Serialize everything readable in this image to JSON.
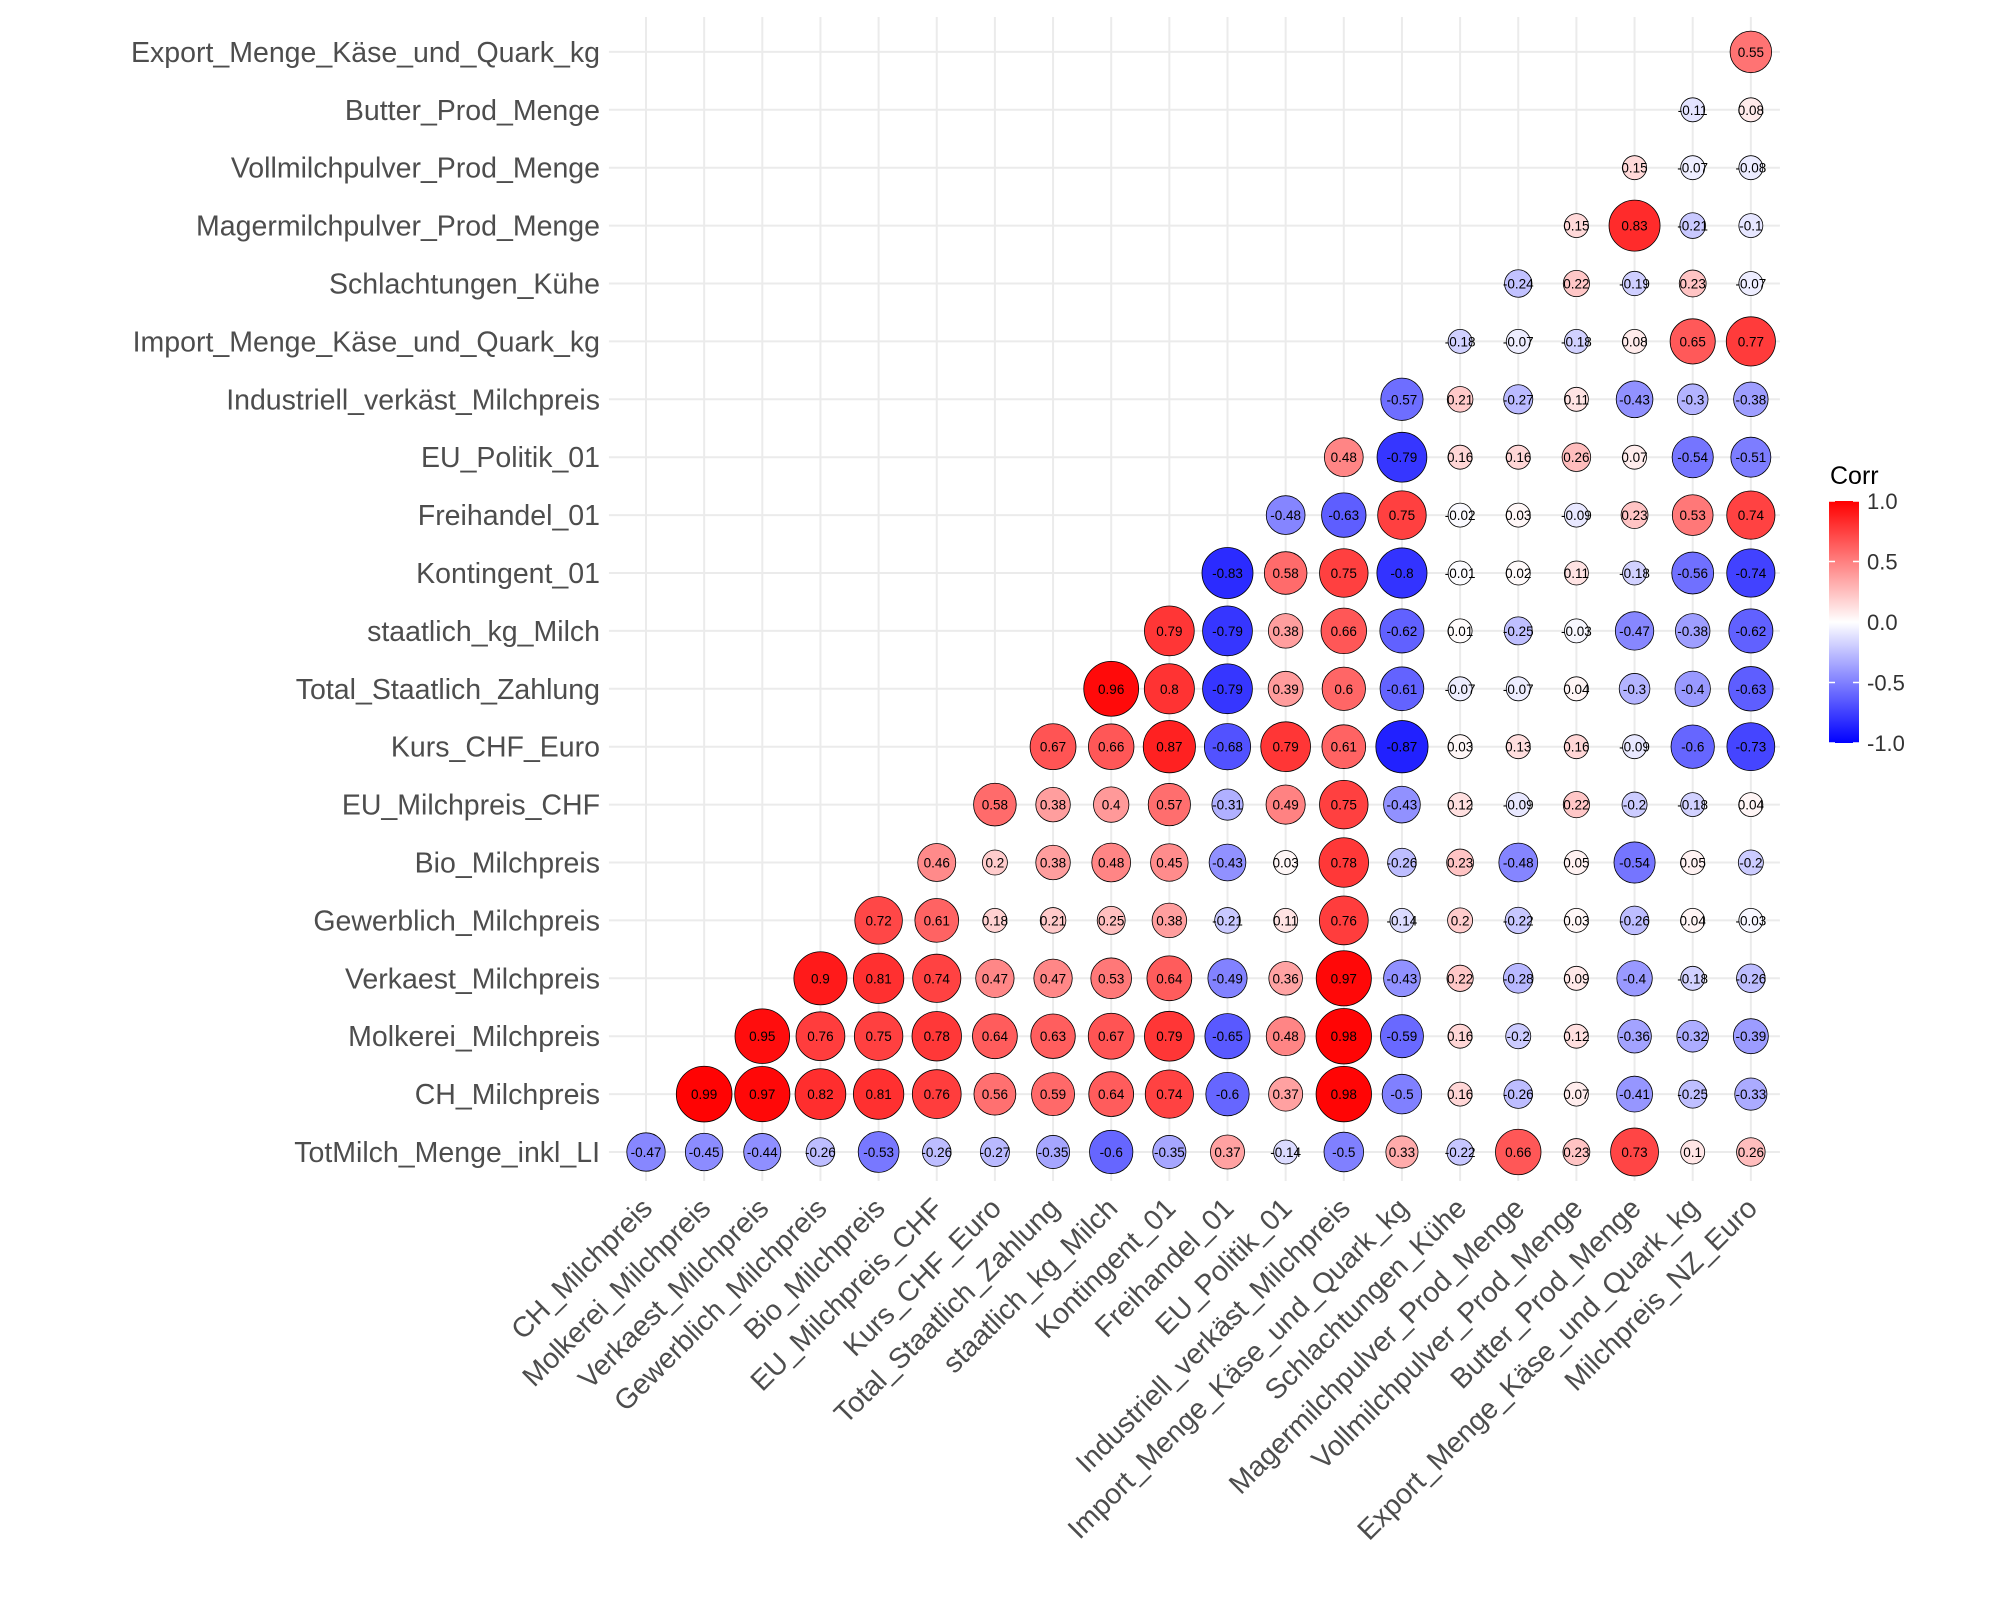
{
  "chart_data": {
    "type": "correlogram",
    "title": "",
    "y_variables": [
      "TotMilch_Menge_inkl_LI",
      "CH_Milchpreis",
      "Molkerei_Milchpreis",
      "Verkaest_Milchpreis",
      "Gewerblich_Milchpreis",
      "Bio_Milchpreis",
      "EU_Milchpreis_CHF",
      "Kurs_CHF_Euro",
      "Total_Staatlich_Zahlung",
      "staatlich_kg_Milch",
      "Kontingent_01",
      "Freihandel_01",
      "EU_Politik_01",
      "Industriell_verkäst_Milchpreis",
      "Import_Menge_Käse_und_Quark_kg",
      "Schlachtungen_Kühe",
      "Magermilchpulver_Prod_Menge",
      "Vollmilchpulver_Prod_Menge",
      "Butter_Prod_Menge",
      "Export_Menge_Käse_und_Quark_kg"
    ],
    "x_variables": [
      "CH_Milchpreis",
      "Molkerei_Milchpreis",
      "Verkaest_Milchpreis",
      "Gewerblich_Milchpreis",
      "Bio_Milchpreis",
      "EU_Milchpreis_CHF",
      "Kurs_CHF_Euro",
      "Total_Staatlich_Zahlung",
      "staatlich_kg_Milch",
      "Kontingent_01",
      "Freihandel_01",
      "EU_Politik_01",
      "Industriell_verkäst_Milchpreis",
      "Import_Menge_Käse_und_Quark_kg",
      "Schlachtungen_Kühe",
      "Magermilchpulver_Prod_Menge",
      "Vollmilchpulver_Prod_Menge",
      "Butter_Prod_Menge",
      "Export_Menge_Käse_und_Quark_kg",
      "Milchpreis_NZ_Euro"
    ],
    "matrix": [
      [
        -0.47,
        -0.45,
        -0.44,
        -0.26,
        -0.53,
        -0.26,
        -0.27,
        -0.35,
        -0.6,
        -0.35,
        0.37,
        -0.14,
        -0.5,
        0.33,
        -0.22,
        0.66,
        0.23,
        0.73,
        0.1,
        0.26
      ],
      [
        null,
        0.99,
        0.97,
        0.82,
        0.81,
        0.76,
        0.56,
        0.59,
        0.64,
        0.74,
        -0.6,
        0.37,
        0.98,
        -0.5,
        0.16,
        -0.26,
        0.07,
        -0.41,
        -0.25,
        -0.33
      ],
      [
        null,
        null,
        0.95,
        0.76,
        0.75,
        0.78,
        0.64,
        0.63,
        0.67,
        0.79,
        -0.65,
        0.48,
        0.98,
        -0.59,
        0.16,
        -0.2,
        0.12,
        -0.36,
        -0.32,
        -0.39
      ],
      [
        null,
        null,
        null,
        0.9,
        0.81,
        0.74,
        0.47,
        0.47,
        0.53,
        0.64,
        -0.49,
        0.36,
        0.97,
        -0.43,
        0.22,
        -0.28,
        0.09,
        -0.4,
        -0.18,
        -0.26
      ],
      [
        null,
        null,
        null,
        null,
        0.72,
        0.61,
        0.18,
        0.21,
        0.25,
        0.38,
        -0.21,
        0.11,
        0.76,
        -0.14,
        0.2,
        -0.22,
        0.03,
        -0.26,
        0.04,
        -0.03
      ],
      [
        null,
        null,
        null,
        null,
        null,
        0.46,
        0.2,
        0.38,
        0.48,
        0.45,
        -0.43,
        0.03,
        0.78,
        -0.26,
        0.23,
        -0.48,
        0.05,
        -0.54,
        0.05,
        -0.2
      ],
      [
        null,
        null,
        null,
        null,
        null,
        null,
        0.58,
        0.38,
        0.4,
        0.57,
        -0.31,
        0.49,
        0.75,
        -0.43,
        0.12,
        -0.09,
        0.22,
        -0.2,
        -0.18,
        0.04
      ],
      [
        null,
        null,
        null,
        null,
        null,
        null,
        null,
        0.67,
        0.66,
        0.87,
        -0.68,
        0.79,
        0.61,
        -0.87,
        0.03,
        0.13,
        0.16,
        -0.09,
        -0.6,
        -0.73
      ],
      [
        null,
        null,
        null,
        null,
        null,
        null,
        null,
        null,
        0.96,
        0.8,
        -0.79,
        0.39,
        0.6,
        -0.61,
        -0.07,
        -0.07,
        0.04,
        -0.3,
        -0.4,
        -0.63
      ],
      [
        null,
        null,
        null,
        null,
        null,
        null,
        null,
        null,
        null,
        0.79,
        -0.79,
        0.38,
        0.66,
        -0.62,
        0.01,
        -0.25,
        -0.03,
        -0.47,
        -0.38,
        -0.62
      ],
      [
        null,
        null,
        null,
        null,
        null,
        null,
        null,
        null,
        null,
        null,
        -0.83,
        0.58,
        0.75,
        -0.8,
        -0.01,
        0.02,
        0.11,
        -0.18,
        -0.56,
        -0.74
      ],
      [
        null,
        null,
        null,
        null,
        null,
        null,
        null,
        null,
        null,
        null,
        null,
        -0.48,
        -0.63,
        0.75,
        -0.02,
        0.03,
        -0.09,
        0.23,
        0.53,
        0.74
      ],
      [
        null,
        null,
        null,
        null,
        null,
        null,
        null,
        null,
        null,
        null,
        null,
        null,
        0.48,
        -0.79,
        0.16,
        0.16,
        0.26,
        0.07,
        -0.54,
        -0.51
      ],
      [
        null,
        null,
        null,
        null,
        null,
        null,
        null,
        null,
        null,
        null,
        null,
        null,
        null,
        -0.57,
        0.21,
        -0.27,
        0.11,
        -0.43,
        -0.3,
        -0.38
      ],
      [
        null,
        null,
        null,
        null,
        null,
        null,
        null,
        null,
        null,
        null,
        null,
        null,
        null,
        null,
        -0.18,
        -0.07,
        -0.18,
        0.08,
        0.65,
        0.77
      ],
      [
        null,
        null,
        null,
        null,
        null,
        null,
        null,
        null,
        null,
        null,
        null,
        null,
        null,
        null,
        null,
        -0.24,
        0.22,
        -0.19,
        0.23,
        -0.07
      ],
      [
        null,
        null,
        null,
        null,
        null,
        null,
        null,
        null,
        null,
        null,
        null,
        null,
        null,
        null,
        null,
        null,
        0.15,
        0.83,
        -0.21,
        -0.1
      ],
      [
        null,
        null,
        null,
        null,
        null,
        null,
        null,
        null,
        null,
        null,
        null,
        null,
        null,
        null,
        null,
        null,
        null,
        0.15,
        -0.07,
        -0.08
      ],
      [
        null,
        null,
        null,
        null,
        null,
        null,
        null,
        null,
        null,
        null,
        null,
        null,
        null,
        null,
        null,
        null,
        null,
        null,
        -0.11,
        0.08
      ],
      [
        null,
        null,
        null,
        null,
        null,
        null,
        null,
        null,
        null,
        null,
        null,
        null,
        null,
        null,
        null,
        null,
        null,
        null,
        null,
        0.55
      ]
    ],
    "legend": {
      "title": "Corr",
      "ticks": [
        "1.0",
        "0.5",
        "0.0",
        "-0.5",
        "-1.0"
      ],
      "tick_values": [
        1.0,
        0.5,
        0.0,
        -0.5,
        -1.0
      ],
      "limits": [
        -1.0,
        1.0
      ],
      "low_color": "#0000ff",
      "mid_color": "#ffffff",
      "high_color": "#ff0000",
      "position": "right"
    },
    "grid": true
  },
  "colors": {
    "grid": "#ebebeb",
    "axis_text": "#4d4d4d",
    "circle_outline": "#000000"
  }
}
